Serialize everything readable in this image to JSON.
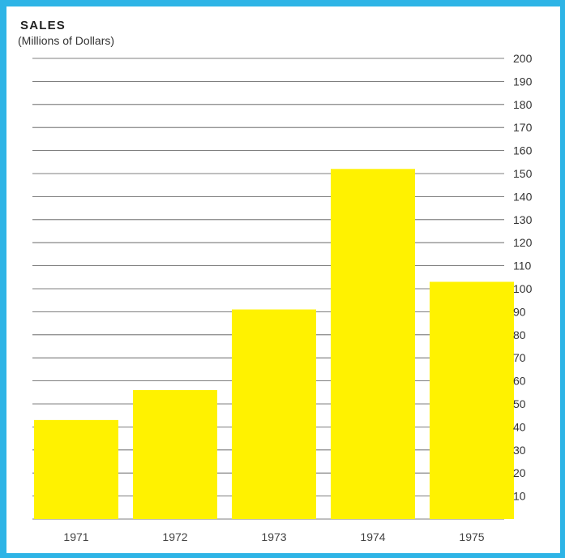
{
  "chart_data": {
    "type": "bar",
    "title": "SALES",
    "subtitle": "(Millions of Dollars)",
    "categories": [
      "1971",
      "1972",
      "1973",
      "1974",
      "1975"
    ],
    "values": [
      43,
      56,
      91,
      152,
      103
    ],
    "ylim": [
      0,
      200
    ],
    "yticks": [
      10,
      20,
      30,
      40,
      50,
      60,
      70,
      80,
      90,
      100,
      110,
      120,
      130,
      140,
      150,
      160,
      170,
      180,
      190,
      200
    ],
    "ytick_labels": [
      "10",
      "20",
      "30",
      "40",
      "50",
      "60",
      "70",
      "80",
      "90",
      "100",
      "110",
      "120",
      "130",
      "140",
      "150",
      "160",
      "170",
      "180",
      "190",
      "200"
    ],
    "grid": true,
    "yaxis_side": "right",
    "bar_color": "#fff200",
    "frame_color": "#2eb4e6",
    "grid_color": "#555555"
  }
}
